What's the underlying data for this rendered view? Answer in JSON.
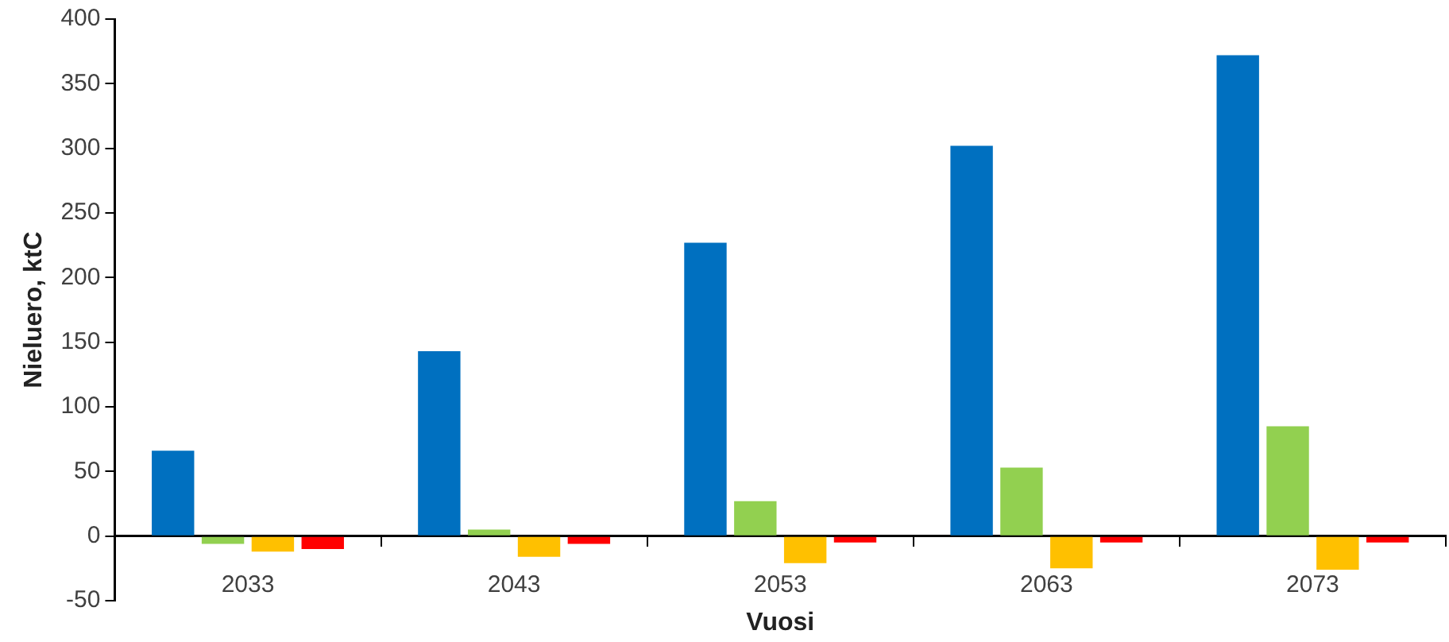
{
  "chart_data": {
    "type": "bar",
    "xlabel": "Vuosi",
    "ylabel": "Nieluero, ktC",
    "categories": [
      "2033",
      "2043",
      "2053",
      "2063",
      "2073"
    ],
    "series": [
      {
        "color": "#0070c0",
        "values": [
          66,
          143,
          227,
          302,
          372
        ]
      },
      {
        "color": "#92d050",
        "values": [
          -6,
          5,
          27,
          53,
          85
        ]
      },
      {
        "color": "#ffc000",
        "values": [
          -12,
          -16,
          -21,
          -25,
          -26
        ]
      },
      {
        "color": "#ff0000",
        "values": [
          -10,
          -6,
          -5,
          -5,
          -5
        ]
      }
    ],
    "ylim": [
      -50,
      400
    ],
    "yticks": [
      -50,
      0,
      50,
      100,
      150,
      200,
      250,
      300,
      350,
      400
    ],
    "grid": false,
    "legend": false
  }
}
